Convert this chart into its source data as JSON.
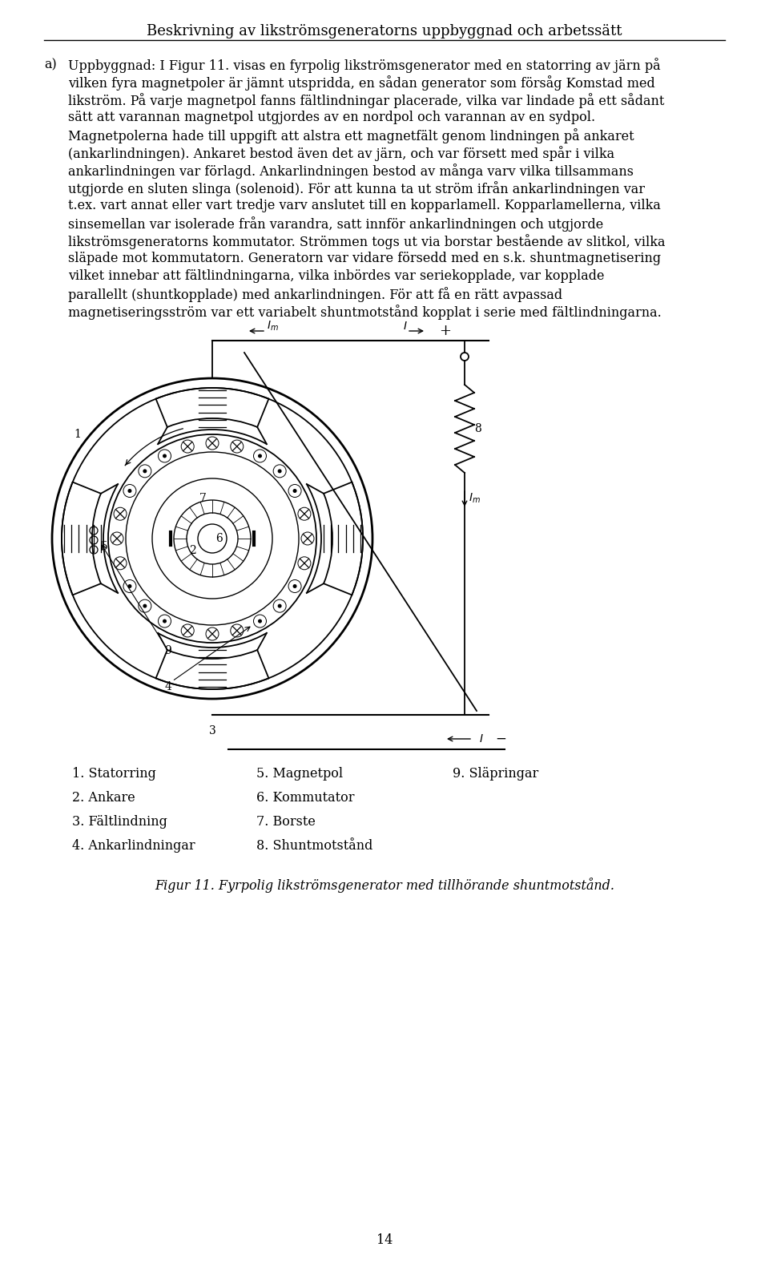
{
  "title": "Beskrivning av likströmsgeneratorns uppbyggnad och arbetssätt",
  "bg_color": "#ffffff",
  "page_number": "14",
  "body_lines": [
    "a) Uppbyggnad: I Figur 11. visas en fyrpolig likströmsgenerator med en statorring av järn på",
    "vilken fyra magnetpoler är jämnt utspridda, en sådan generator som försåg Komstad med",
    "likström. På varje magnetpol fanns fältlindningar placerade, vilka var lindade på ett sådant",
    "sätt att varannan magnetpol utgjordes av en nordpol och varannan av en sydpol.",
    "Magnetpolerna hade till uppgift att alstra ett magnetfält genom lindningen på ankaret",
    "(ankarlindningen). Ankaret bestod även det av järn, och var försett med spår i vilka",
    "ankarlindningen var förlagd. Ankarlindningen bestod av många varv vilka tillsammans",
    "utgjorde en sluten slinga (solenoid). För att kunna ta ut ström ifrån ankarlindningen var",
    "t.ex. vart annat eller vart tredje varv anslutet till en kopparlamell. Kopparlamellerna, vilka",
    "sinsemellan var isolerade från varandra, satt innför ankarlindningen och utgjorde",
    "likströmsgeneratorns kommutator. Strömmen togs ut via borstar bestående av slitkol, vilka",
    "släpade mot kommutatorn. Generatorn var vidare försedd med en s.k. shuntmagnetisering",
    "vilket innebar att fältlindningarna, vilka inbördes var seriekopplade, var kopplade",
    "parallellt (shuntkopplade) med ankarlindningen. För att få en rätt avpassad",
    "magnetiseringsström var ett variabelt shuntmotstånd kopplat i serie med fältlindningarna."
  ],
  "legend": [
    [
      "1. Statorring",
      "5. Magnetpol",
      "9. Släpringar"
    ],
    [
      "2. Ankare",
      "6. Kommutator",
      ""
    ],
    [
      "3. Fältlindning",
      "7. Borste",
      ""
    ],
    [
      "4. Ankarlindningar",
      "8. Shuntmotstånd",
      ""
    ]
  ],
  "figure_caption": "Figur 11. Fyrpolig likströmsgenerator med tillhörande shuntmotstånd."
}
